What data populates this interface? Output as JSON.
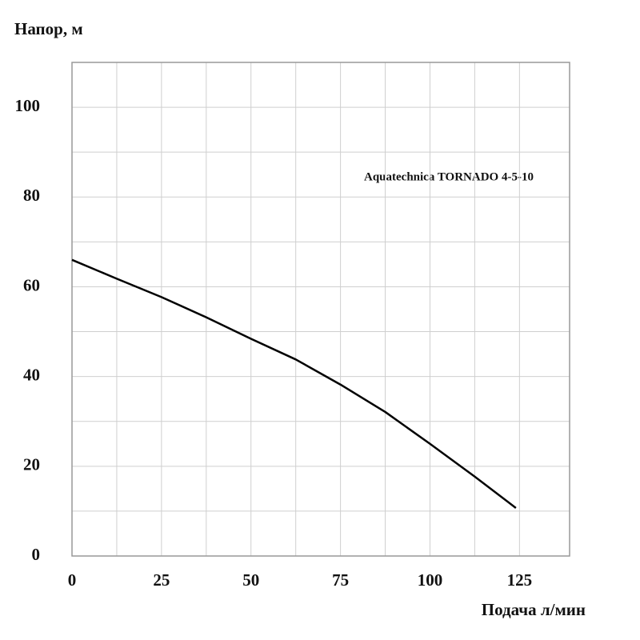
{
  "chart_data": {
    "type": "line",
    "y_label": "Напор, м",
    "x_label": "Подача л/мин",
    "annotation": "Aquatechnica TORNADO 4-5-10",
    "x": [
      0,
      12.5,
      25,
      37.5,
      50,
      62.5,
      75,
      87.5,
      100,
      112.5,
      124
    ],
    "series": [
      {
        "name": "Aquatechnica TORNADO 4-5-10",
        "color": "#000000",
        "values": [
          66,
          61.8,
          57.7,
          53.2,
          48.4,
          43.8,
          38.2,
          32.1,
          25,
          17.7,
          10.7
        ]
      }
    ],
    "xlim": [
      0,
      139
    ],
    "ylim": [
      0,
      110
    ],
    "xticks": [
      0,
      25,
      50,
      75,
      100,
      125
    ],
    "yticks": [
      0,
      20,
      40,
      60,
      80,
      100
    ],
    "xgrid": [
      12.5,
      25,
      37.5,
      50,
      62.5,
      75,
      87.5,
      100,
      112.5,
      125
    ],
    "ygrid": [
      10,
      20,
      30,
      40,
      50,
      60,
      70,
      80,
      90,
      100
    ],
    "grid": true
  }
}
